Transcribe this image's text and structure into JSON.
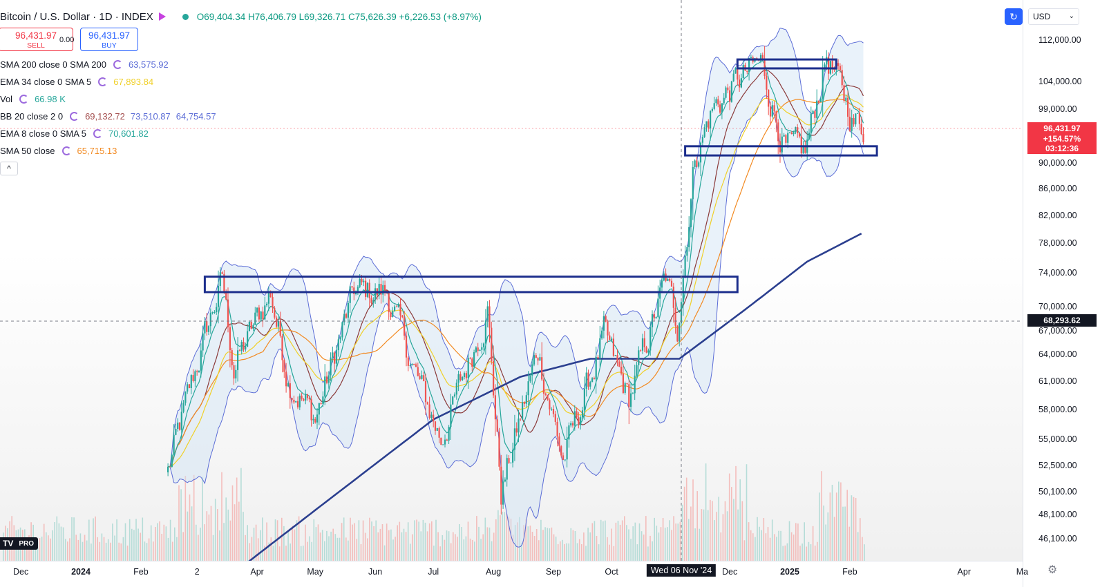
{
  "header": {
    "symbol": "Bitcoin / U.S. Dollar · 1D · INDEX",
    "open": "O69,404.34",
    "high": "H76,406.79",
    "low": "L69,326.71",
    "close": "C75,626.39",
    "change": "+6,226.53 (+8.97%)"
  },
  "trade": {
    "sell_price": "96,431.97",
    "sell_label": "SELL",
    "spread": "0.00",
    "buy_price": "96,431.97",
    "buy_label": "BUY"
  },
  "indicators": [
    {
      "label": "SMA 200 close 0 SMA 200",
      "value": "63,575.92",
      "color": "#5b6cd6"
    },
    {
      "label": "EMA 34 close 0 SMA 5",
      "value": "67,893.84",
      "color": "#f0d028"
    },
    {
      "label": "Vol",
      "value": "66.98 K",
      "color": "#26a69a"
    },
    {
      "label": "BB 20 close 2 0",
      "value": "69,132.72",
      "value2": "73,510.87",
      "value3": "64,754.57",
      "color": "#a34d4d",
      "color2": "#5b6cd6",
      "color3": "#5b6cd6"
    },
    {
      "label": "EMA 8 close 0 SMA 5",
      "value": "70,601.82",
      "color": "#26a69a"
    },
    {
      "label": "SMA 50 close",
      "value": "65,715.13",
      "color": "#f28a22"
    }
  ],
  "collapse_icon": "chevron-up-icon",
  "watermark": {
    "logo": "TV",
    "badge": "PRO"
  },
  "toolbar": {
    "currency": "USD",
    "sync_icon": "sync-icon"
  },
  "colors": {
    "up": "#26a69a",
    "down": "#ef5350",
    "sma200": "#2b3f8f",
    "ema34": "#f0d028",
    "sma50": "#f28a22",
    "ema8": "#26a69a",
    "bb_basis": "#8b3a3a",
    "bb_band": "#5b6cd6",
    "zone": "#1c2e8c",
    "price_tag": "#f23645",
    "crosshair_tag": "#131722"
  },
  "price_tag": {
    "price": "96,431.97",
    "change": "+154.57%",
    "countdown": "03:12:36"
  },
  "crosshair_tag": "68,293.62",
  "chart_data": {
    "type": "candlestick",
    "title": "Bitcoin / U.S. Dollar · 1D · INDEX",
    "x_ticks": [
      "Dec",
      "2024",
      "Feb",
      "2",
      "Apr",
      "May",
      "Jun",
      "Jul",
      "Aug",
      "Sep",
      "Oct",
      "Wed 06 Nov '24",
      "Dec",
      "2025",
      "Feb",
      "Apr",
      "Ma"
    ],
    "y_ticks": [
      "112,000.00",
      "104,000.00",
      "99,000.00",
      "90,000.00",
      "86,000.00",
      "82,000.00",
      "78,000.00",
      "74,000.00",
      "70,000.00",
      "67,000.00",
      "64,000.00",
      "61,000.00",
      "58,000.00",
      "55,000.00",
      "52,500.00",
      "50,100.00",
      "48,100.00",
      "46,100.00"
    ],
    "y_scale": "log",
    "crosshair": {
      "date": "Wed 06 Nov '24",
      "price": 68293.62
    },
    "zones": [
      {
        "from": "2024-03-05",
        "to": "2024-12-05",
        "low": 71500,
        "high": 73500
      },
      {
        "from": "2024-11-08",
        "to": "2025-02-15",
        "low": 91200,
        "high": 92700
      },
      {
        "from": "2024-12-05",
        "to": "2025-01-25",
        "low": 106500,
        "high": 108200
      }
    ],
    "price_path": [
      {
        "date": "2024-02-15",
        "price": 52000
      },
      {
        "date": "2024-03-05",
        "price": 66000
      },
      {
        "date": "2024-03-14",
        "price": 73000
      },
      {
        "date": "2024-03-20",
        "price": 62500
      },
      {
        "date": "2024-04-08",
        "price": 71500
      },
      {
        "date": "2024-04-17",
        "price": 61500
      },
      {
        "date": "2024-05-01",
        "price": 57000
      },
      {
        "date": "2024-05-21",
        "price": 71500
      },
      {
        "date": "2024-06-07",
        "price": 71500
      },
      {
        "date": "2024-06-24",
        "price": 60500
      },
      {
        "date": "2024-07-05",
        "price": 55000
      },
      {
        "date": "2024-07-29",
        "price": 69500
      },
      {
        "date": "2024-08-05",
        "price": 50000
      },
      {
        "date": "2024-08-24",
        "price": 64500
      },
      {
        "date": "2024-09-06",
        "price": 53000
      },
      {
        "date": "2024-09-27",
        "price": 66000
      },
      {
        "date": "2024-10-10",
        "price": 59000
      },
      {
        "date": "2024-10-29",
        "price": 73000
      },
      {
        "date": "2024-11-04",
        "price": 67500
      },
      {
        "date": "2024-11-13",
        "price": 91000
      },
      {
        "date": "2024-11-22",
        "price": 99000
      },
      {
        "date": "2024-12-05",
        "price": 104000
      },
      {
        "date": "2024-12-17",
        "price": 107500
      },
      {
        "date": "2024-12-30",
        "price": 92000
      },
      {
        "date": "2025-01-09",
        "price": 91500
      },
      {
        "date": "2025-01-20",
        "price": 109000
      },
      {
        "date": "2025-02-03",
        "price": 97000
      },
      {
        "date": "2025-02-08",
        "price": 96432
      }
    ],
    "sma200_path": [
      {
        "date": "2024-03-08",
        "price": 42000
      },
      {
        "date": "2024-05-01",
        "price": 48500
      },
      {
        "date": "2024-07-01",
        "price": 57000
      },
      {
        "date": "2024-08-15",
        "price": 61500
      },
      {
        "date": "2024-09-20",
        "price": 63500
      },
      {
        "date": "2024-10-20",
        "price": 63500
      },
      {
        "date": "2024-11-05",
        "price": 63500
      },
      {
        "date": "2024-12-10",
        "price": 69500
      },
      {
        "date": "2025-01-10",
        "price": 75500
      },
      {
        "date": "2025-02-08",
        "price": 79500
      }
    ]
  }
}
